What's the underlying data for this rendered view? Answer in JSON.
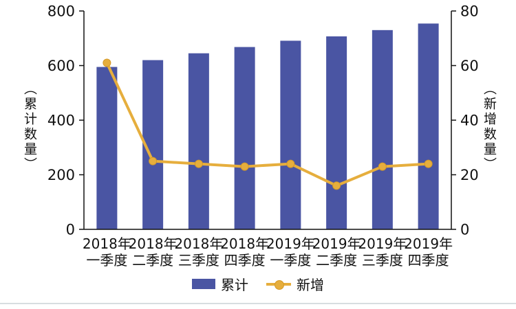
{
  "chart_data": {
    "type": "bar",
    "subtype": "bar+line combo, dual y-axis",
    "categories": [
      [
        "2018年",
        "一季度"
      ],
      [
        "2018年",
        "二季度"
      ],
      [
        "2018年",
        "三季度"
      ],
      [
        "2018年",
        "四季度"
      ],
      [
        "2019年",
        "一季度"
      ],
      [
        "2019年",
        "二季度"
      ],
      [
        "2019年",
        "三季度"
      ],
      [
        "2019年",
        "四季度"
      ]
    ],
    "series": [
      {
        "name": "累计",
        "type": "bar",
        "axis": "left",
        "color": "#4a55a3",
        "values": [
          595,
          620,
          645,
          668,
          691,
          707,
          730,
          754
        ]
      },
      {
        "name": "新增",
        "type": "line",
        "axis": "right",
        "color": "#e6ae3d",
        "values": [
          61,
          25,
          24,
          23,
          24,
          16,
          23,
          24
        ]
      }
    ],
    "left_axis": {
      "label": "（累计数量）",
      "min": 0,
      "max": 800,
      "ticks": [
        0,
        200,
        400,
        600,
        800
      ]
    },
    "right_axis": {
      "label": "（新增数量）",
      "min": 0,
      "max": 80,
      "ticks": [
        0,
        20,
        40,
        60,
        80
      ]
    },
    "legend": {
      "position": "bottom",
      "items": [
        "累计",
        "新增"
      ]
    },
    "grid": false,
    "title": ""
  },
  "colors": {
    "axis": "#111111",
    "bar": "#4a55a3",
    "line": "#e6ae3d",
    "line_marker_edge": "#d59a28",
    "divider": "#d7dde0"
  }
}
